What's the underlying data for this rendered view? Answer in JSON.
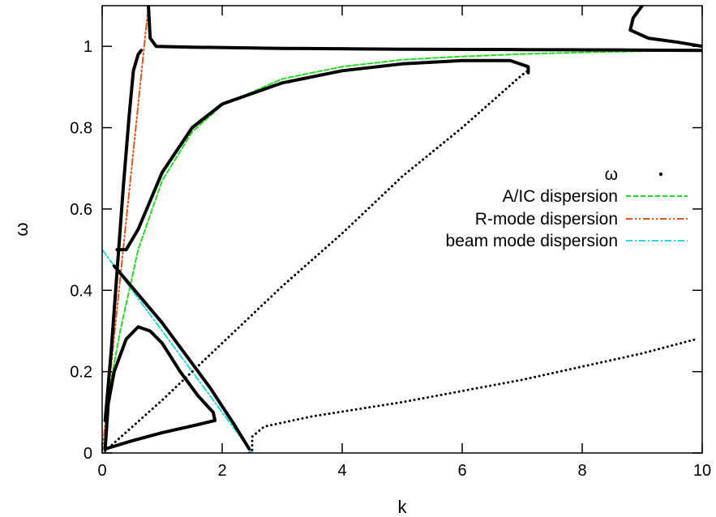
{
  "chart_data": {
    "type": "scatter",
    "title": "",
    "xlabel": "k",
    "ylabel": "ω",
    "xlim": [
      0,
      10
    ],
    "ylim": [
      0,
      1.1
    ],
    "x_ticks": [
      "0",
      "2",
      "4",
      "6",
      "8",
      "10"
    ],
    "y_ticks": [
      "0",
      "0.2",
      "0.4",
      "0.6",
      "0.8",
      "1"
    ],
    "grid": false,
    "legend_position": "right",
    "legend": [
      {
        "label": "ω",
        "style": "dots",
        "color": "#000000"
      },
      {
        "label": "A/IC dispersion",
        "style": "dashed",
        "color": "#22dd22"
      },
      {
        "label": "R-mode dispersion",
        "style": "dash-dot-dot",
        "color": "#e8521a"
      },
      {
        "label": "beam mode dispersion",
        "style": "dash-dot",
        "color": "#22d8e8"
      }
    ],
    "series": [
      {
        "name": "ω",
        "branch": "upper-right",
        "points": [
          [
            0.77,
            1.1
          ],
          [
            0.8,
            1.02
          ],
          [
            0.9,
            1.0
          ],
          [
            1.5,
            0.998
          ],
          [
            3,
            0.995
          ],
          [
            5,
            0.993
          ],
          [
            7,
            0.992
          ],
          [
            8.8,
            0.991
          ],
          [
            10,
            0.99
          ]
        ]
      },
      {
        "name": "ω",
        "branch": "top-right-corner",
        "points": [
          [
            9.0,
            1.1
          ],
          [
            8.85,
            1.07
          ],
          [
            8.8,
            1.04
          ],
          [
            9.1,
            1.02
          ],
          [
            9.6,
            1.01
          ],
          [
            10,
            1.0
          ]
        ]
      },
      {
        "name": "ω",
        "branch": "steep-lower",
        "points": [
          [
            0.05,
            0.08
          ],
          [
            0.15,
            0.25
          ],
          [
            0.25,
            0.45
          ],
          [
            0.35,
            0.65
          ],
          [
            0.45,
            0.83
          ],
          [
            0.52,
            0.94
          ],
          [
            0.6,
            0.98
          ],
          [
            0.65,
            0.99
          ]
        ]
      },
      {
        "name": "ω",
        "branch": "alfven-ic",
        "points": [
          [
            0.25,
            0.5
          ],
          [
            0.4,
            0.5
          ],
          [
            0.6,
            0.55
          ],
          [
            0.8,
            0.62
          ],
          [
            1.0,
            0.69
          ],
          [
            1.5,
            0.8
          ],
          [
            2,
            0.858
          ],
          [
            3,
            0.91
          ],
          [
            4,
            0.94
          ],
          [
            5,
            0.957
          ],
          [
            6,
            0.965
          ],
          [
            6.8,
            0.965
          ],
          [
            7.1,
            0.95
          ],
          [
            7.1,
            0.935
          ]
        ]
      },
      {
        "name": "ω",
        "branch": "diagonal",
        "points": [
          [
            0.05,
            0.005
          ],
          [
            1,
            0.13
          ],
          [
            2,
            0.27
          ],
          [
            3,
            0.41
          ],
          [
            4,
            0.54
          ],
          [
            5,
            0.68
          ],
          [
            6,
            0.8
          ],
          [
            7,
            0.93
          ],
          [
            7.1,
            0.94
          ]
        ]
      },
      {
        "name": "ω",
        "branch": "lobe",
        "points": [
          [
            0.05,
            0.01
          ],
          [
            0.1,
            0.12
          ],
          [
            0.2,
            0.2
          ],
          [
            0.4,
            0.28
          ],
          [
            0.6,
            0.31
          ],
          [
            0.8,
            0.3
          ],
          [
            1.0,
            0.27
          ],
          [
            1.3,
            0.2
          ],
          [
            1.6,
            0.14
          ],
          [
            1.85,
            0.1
          ],
          [
            1.88,
            0.08
          ],
          [
            1.6,
            0.07
          ],
          [
            1.0,
            0.05
          ],
          [
            0.5,
            0.03
          ],
          [
            0.05,
            0.01
          ]
        ]
      },
      {
        "name": "ω",
        "branch": "beam",
        "points": [
          [
            0.2,
            0.46
          ],
          [
            0.6,
            0.39
          ],
          [
            1.0,
            0.32
          ],
          [
            1.4,
            0.24
          ],
          [
            1.8,
            0.16
          ],
          [
            2.2,
            0.07
          ],
          [
            2.45,
            0.01
          ]
        ]
      },
      {
        "name": "ω",
        "branch": "lower-right",
        "points": [
          [
            2.45,
            0.0
          ],
          [
            2.5,
            0.005
          ],
          [
            2.5,
            0.04
          ],
          [
            2.7,
            0.065
          ],
          [
            3.5,
            0.09
          ],
          [
            5,
            0.125
          ],
          [
            7,
            0.18
          ],
          [
            9,
            0.245
          ],
          [
            9.9,
            0.28
          ]
        ]
      },
      {
        "name": "A/IC dispersion",
        "points": [
          [
            0.05,
            0.1
          ],
          [
            0.3,
            0.3
          ],
          [
            0.6,
            0.5
          ],
          [
            1.0,
            0.67
          ],
          [
            1.5,
            0.79
          ],
          [
            2.0,
            0.855
          ],
          [
            3.0,
            0.92
          ],
          [
            4.0,
            0.95
          ],
          [
            5.0,
            0.967
          ],
          [
            6.0,
            0.975
          ],
          [
            7.0,
            0.981
          ],
          [
            8.0,
            0.985
          ],
          [
            9.0,
            0.988
          ],
          [
            10,
            0.99
          ]
        ]
      },
      {
        "name": "R-mode dispersion",
        "points": [
          [
            0.0,
            0.0
          ],
          [
            0.77,
            1.1
          ]
        ]
      },
      {
        "name": "beam mode dispersion",
        "points": [
          [
            0.0,
            0.5
          ],
          [
            2.5,
            0.0
          ]
        ]
      }
    ]
  }
}
